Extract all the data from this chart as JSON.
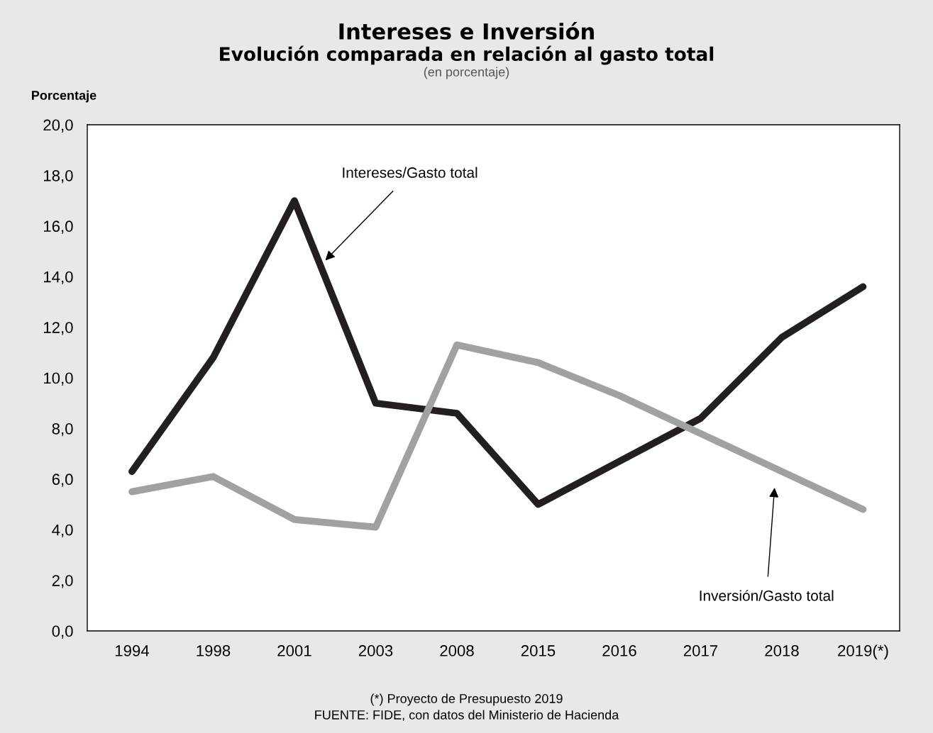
{
  "chart_data": {
    "type": "line",
    "title": "Intereses e Inversión",
    "subtitle": "Evolución comparada en relación al gasto total",
    "ylabel": "Porcentaje",
    "annotations": [
      "(en porcentaje)",
      "(*) Proyecto de Presupuesto 2019",
      "FUENTE: FIDE, con datos del Ministerio de Hacienda"
    ],
    "categories": [
      "1994",
      "1998",
      "2001",
      "2003",
      "2008",
      "2015",
      "2016",
      "2017",
      "2018",
      "2019(*)"
    ],
    "series": [
      {
        "name": "Intereses/Gasto total",
        "color": "#231f20",
        "values": [
          6.3,
          10.8,
          17.0,
          9.0,
          8.6,
          5.0,
          6.7,
          8.4,
          11.6,
          13.6
        ]
      },
      {
        "name": "Inversión/Gasto total",
        "color": "#a0a1a3",
        "values": [
          5.5,
          6.1,
          4.4,
          4.1,
          11.3,
          10.6,
          9.3,
          7.8,
          6.3,
          4.8
        ]
      }
    ],
    "ylim": [
      0,
      20
    ],
    "yticks": [
      {
        "value": 0,
        "label": "0,0"
      },
      {
        "value": 2,
        "label": "2,0"
      },
      {
        "value": 4,
        "label": "4,0"
      },
      {
        "value": 6,
        "label": "6,0"
      },
      {
        "value": 8,
        "label": "8,0"
      },
      {
        "value": 10,
        "label": "10,0"
      },
      {
        "value": 12,
        "label": "12,0"
      },
      {
        "value": 14,
        "label": "14,0"
      },
      {
        "value": 16,
        "label": "16,0"
      },
      {
        "value": 18,
        "label": "18,0"
      },
      {
        "value": 20,
        "label": "20,0"
      }
    ],
    "grid": false,
    "legend": false,
    "marker": "none",
    "line_style": "solid"
  }
}
